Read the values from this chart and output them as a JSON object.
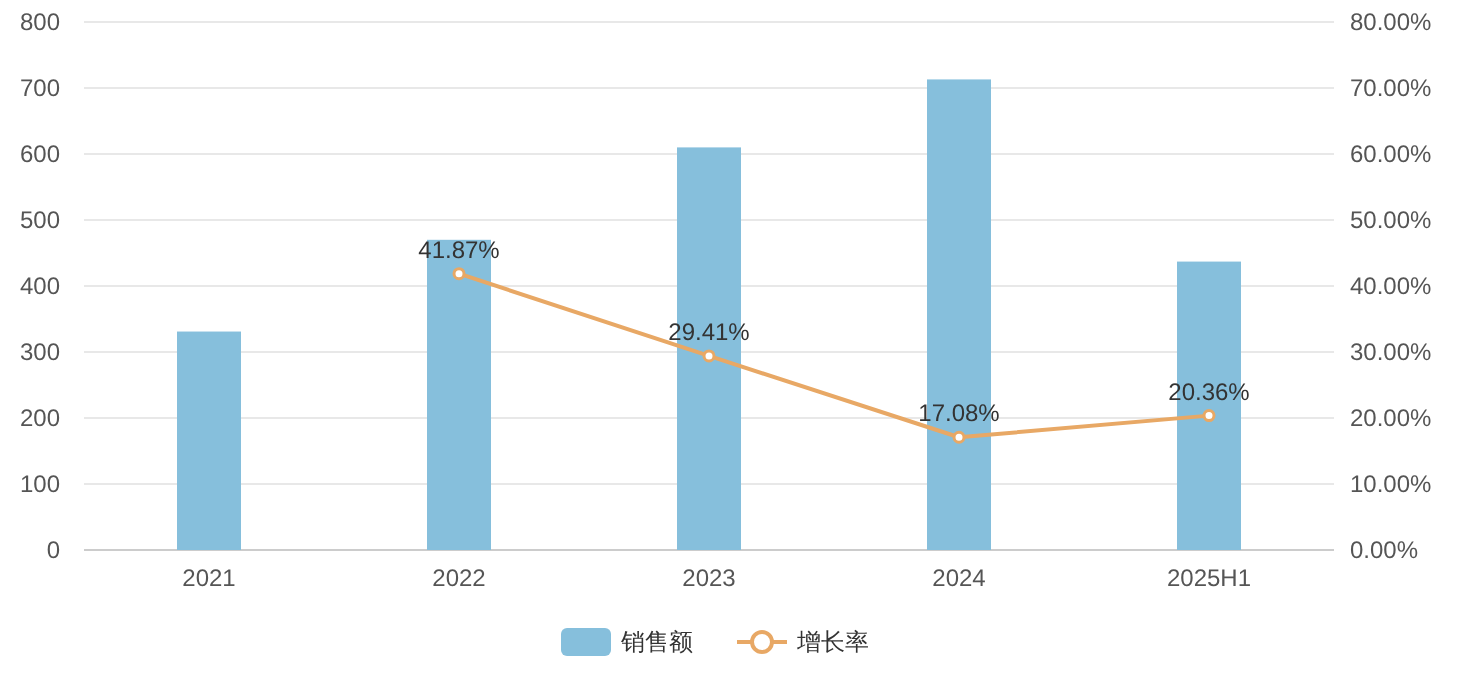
{
  "chart_data": {
    "type": "bar",
    "categories": [
      "2021",
      "2022",
      "2023",
      "2024",
      "2025H1"
    ],
    "series": [
      {
        "name": "销售额",
        "color": "#86bfdc",
        "values": [
          331,
          470,
          610,
          713,
          437
        ]
      },
      {
        "name": "增长率",
        "type": "line",
        "axis": "y2",
        "color": "#e8a865",
        "values": [
          null,
          41.87,
          29.41,
          17.08,
          20.36
        ],
        "value_labels": [
          null,
          "41.87%",
          "29.41%",
          "17.08%",
          "20.36%"
        ]
      }
    ],
    "ylim": [
      0,
      800
    ],
    "yticks": [
      0,
      100,
      200,
      300,
      400,
      500,
      600,
      700,
      800
    ],
    "y2lim": [
      0,
      80
    ],
    "y2ticks": [
      {
        "value": 0,
        "label": "0.00%"
      },
      {
        "value": 10,
        "label": "10.00%"
      },
      {
        "value": 20,
        "label": "20.00%"
      },
      {
        "value": 30,
        "label": "30.00%"
      },
      {
        "value": 40,
        "label": "40.00%"
      },
      {
        "value": 50,
        "label": "50.00%"
      },
      {
        "value": 60,
        "label": "60.00%"
      },
      {
        "value": 70,
        "label": "70.00%"
      },
      {
        "value": 80,
        "label": "80.00%"
      }
    ],
    "grid": "y",
    "legend": "bottom",
    "marker": "circle"
  }
}
